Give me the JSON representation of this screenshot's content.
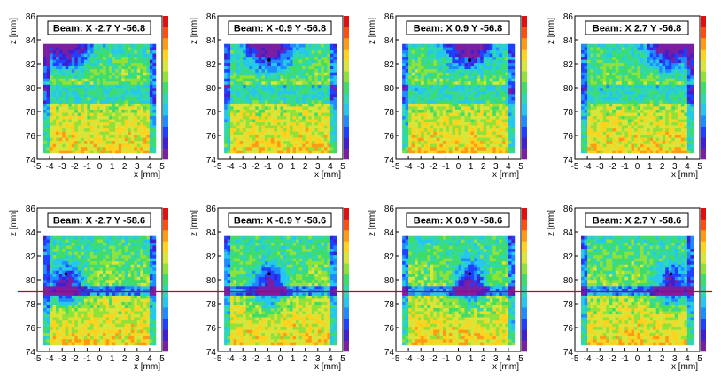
{
  "figure": {
    "rows": 2,
    "cols": 4,
    "ref_line_z": 79.0,
    "ref_line_color": "#cc0000",
    "palette": [
      "#7b1fa2",
      "#3f1fd0",
      "#1e40ff",
      "#1e8bff",
      "#25c7ef",
      "#2fd8b3",
      "#3edc6a",
      "#8fe23a",
      "#d8e53a",
      "#ffd21e",
      "#ff9a16",
      "#ff4d12",
      "#e01010"
    ]
  },
  "chart_data": [
    {
      "type": "heatmap",
      "title": "Beam: X -2.7  Y -56.8",
      "beam_x": -2.7,
      "beam_y": -56.8,
      "xlabel": "x [mm]",
      "ylabel": "z [mm]",
      "xlim": [
        -5,
        5
      ],
      "ylim": [
        74,
        86
      ],
      "xticks": [
        "-5",
        "-4",
        "-3",
        "-2",
        "-1",
        "0",
        "1",
        "2",
        "3",
        "4",
        "5"
      ],
      "yticks": [
        "74",
        "76",
        "78",
        "80",
        "82",
        "84",
        "86"
      ],
      "beam_marker": false
    },
    {
      "type": "heatmap",
      "title": "Beam: X -0.9  Y -56.8",
      "beam_x": -0.9,
      "beam_y": -56.8,
      "xlabel": "x [mm]",
      "ylabel": "z [mm]",
      "xlim": [
        -5,
        5
      ],
      "ylim": [
        74,
        86
      ],
      "xticks": [
        "-5",
        "-4",
        "-3",
        "-2",
        "-1",
        "0",
        "1",
        "2",
        "3",
        "4",
        "5"
      ],
      "yticks": [
        "74",
        "76",
        "78",
        "80",
        "82",
        "84",
        "86"
      ],
      "beam_marker": true,
      "beam_marker_z": 82.3
    },
    {
      "type": "heatmap",
      "title": "Beam: X 0.9  Y -56.8",
      "beam_x": 0.9,
      "beam_y": -56.8,
      "xlabel": "x [mm]",
      "ylabel": "z [mm]",
      "xlim": [
        -5,
        5
      ],
      "ylim": [
        74,
        86
      ],
      "xticks": [
        "-5",
        "-4",
        "-3",
        "-2",
        "-1",
        "0",
        "1",
        "2",
        "3",
        "4",
        "5"
      ],
      "yticks": [
        "74",
        "76",
        "78",
        "80",
        "82",
        "84",
        "86"
      ],
      "beam_marker": true,
      "beam_marker_z": 82.3
    },
    {
      "type": "heatmap",
      "title": "Beam: X 2.7  Y -56.8",
      "beam_x": 2.7,
      "beam_y": -56.8,
      "xlabel": "x [mm]",
      "ylabel": "z [mm]",
      "xlim": [
        -5,
        5
      ],
      "ylim": [
        74,
        86
      ],
      "xticks": [
        "-5",
        "-4",
        "-3",
        "-2",
        "-1",
        "0",
        "1",
        "2",
        "3",
        "4",
        "5"
      ],
      "yticks": [
        "74",
        "76",
        "78",
        "80",
        "82",
        "84",
        "86"
      ],
      "beam_marker": false
    },
    {
      "type": "heatmap",
      "title": "Beam: X -2.7  Y -58.6",
      "beam_x": -2.7,
      "beam_y": -58.6,
      "xlabel": "x [mm]",
      "ylabel": "z [mm]",
      "xlim": [
        -5,
        5
      ],
      "ylim": [
        74,
        86
      ],
      "xticks": [
        "-5",
        "-4",
        "-3",
        "-2",
        "-1",
        "0",
        "1",
        "2",
        "3",
        "4",
        "5"
      ],
      "yticks": [
        "74",
        "76",
        "78",
        "80",
        "82",
        "84",
        "86"
      ],
      "beam_marker": true,
      "beam_marker_z": 80.5
    },
    {
      "type": "heatmap",
      "title": "Beam: X -0.9  Y -58.6",
      "beam_x": -0.9,
      "beam_y": -58.6,
      "xlabel": "x [mm]",
      "ylabel": "z [mm]",
      "xlim": [
        -5,
        5
      ],
      "ylim": [
        74,
        86
      ],
      "xticks": [
        "-5",
        "-4",
        "-3",
        "-2",
        "-1",
        "0",
        "1",
        "2",
        "3",
        "4",
        "5"
      ],
      "yticks": [
        "74",
        "76",
        "78",
        "80",
        "82",
        "84",
        "86"
      ],
      "beam_marker": true,
      "beam_marker_z": 80.5
    },
    {
      "type": "heatmap",
      "title": "Beam: X 0.9  Y -58.6",
      "beam_x": 0.9,
      "beam_y": -58.6,
      "xlabel": "x [mm]",
      "ylabel": "z [mm]",
      "xlim": [
        -5,
        5
      ],
      "ylim": [
        74,
        86
      ],
      "xticks": [
        "-5",
        "-4",
        "-3",
        "-2",
        "-1",
        "0",
        "1",
        "2",
        "3",
        "4",
        "5"
      ],
      "yticks": [
        "74",
        "76",
        "78",
        "80",
        "82",
        "84",
        "86"
      ],
      "beam_marker": true,
      "beam_marker_z": 80.5
    },
    {
      "type": "heatmap",
      "title": "Beam: X 2.7  Y -58.6",
      "beam_x": 2.7,
      "beam_y": -58.6,
      "xlabel": "x [mm]",
      "ylabel": "z [mm]",
      "xlim": [
        -5,
        5
      ],
      "ylim": [
        74,
        86
      ],
      "xticks": [
        "-5",
        "-4",
        "-3",
        "-2",
        "-1",
        "0",
        "1",
        "2",
        "3",
        "4",
        "5"
      ],
      "yticks": [
        "74",
        "76",
        "78",
        "80",
        "82",
        "84",
        "86"
      ],
      "beam_marker": true,
      "beam_marker_z": 80.5
    }
  ]
}
